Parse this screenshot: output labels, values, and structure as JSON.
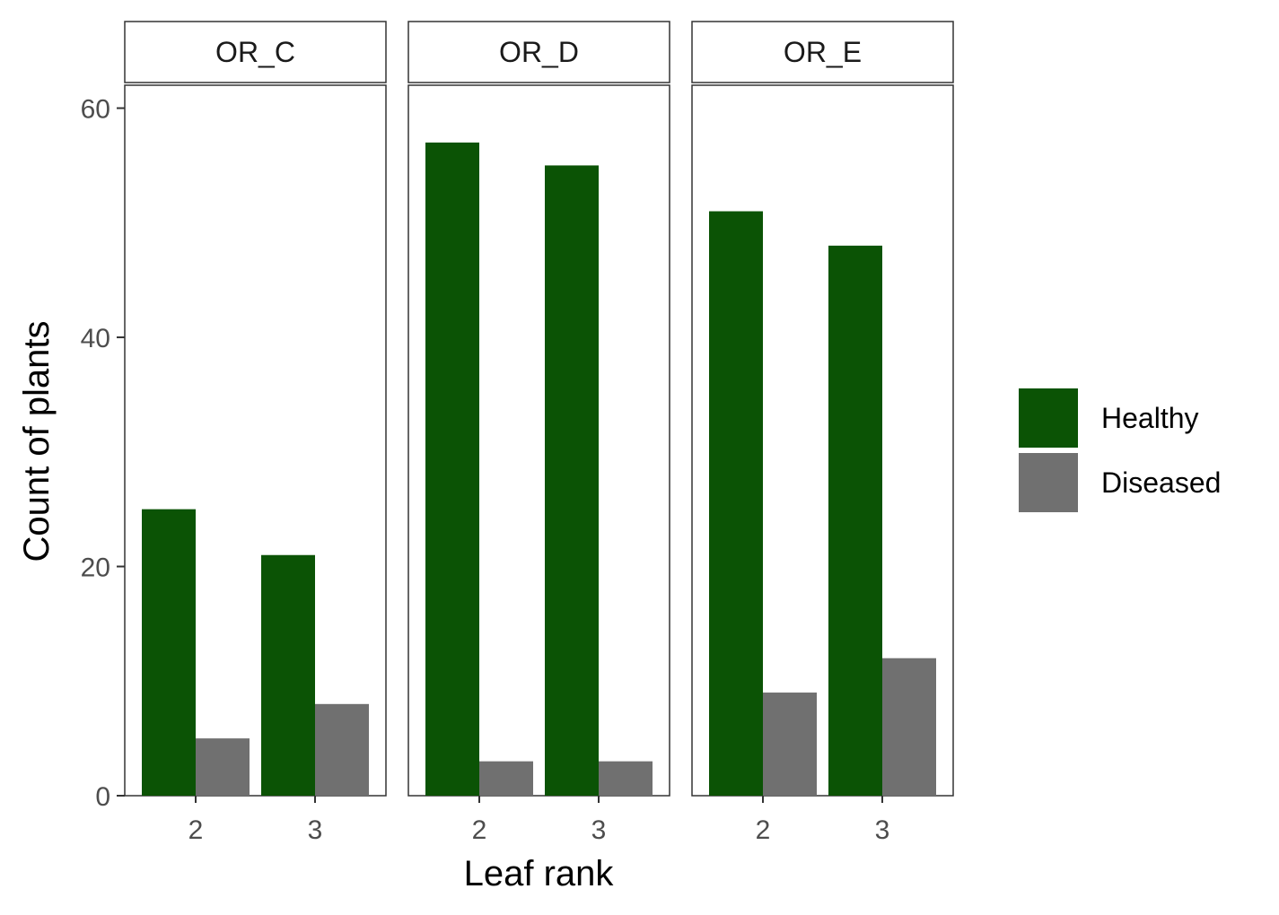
{
  "chart_data": {
    "type": "bar",
    "layout": "faceted-grouped",
    "xlabel": "Leaf rank",
    "ylabel": "Count of plants",
    "ylim": [
      0,
      62
    ],
    "yticks": [
      0,
      20,
      40,
      60
    ],
    "categories": [
      "2",
      "3"
    ],
    "grid": false,
    "legend_position": "right",
    "series": [
      {
        "name": "Healthy",
        "color": "#0b5305"
      },
      {
        "name": "Diseased",
        "color": "#707070"
      }
    ],
    "facets": [
      {
        "name": "OR_C",
        "values": {
          "Healthy": [
            25,
            21
          ],
          "Diseased": [
            5,
            8
          ]
        }
      },
      {
        "name": "OR_D",
        "values": {
          "Healthy": [
            57,
            55
          ],
          "Diseased": [
            3,
            3
          ]
        }
      },
      {
        "name": "OR_E",
        "values": {
          "Healthy": [
            51,
            48
          ],
          "Diseased": [
            9,
            12
          ]
        }
      }
    ]
  }
}
